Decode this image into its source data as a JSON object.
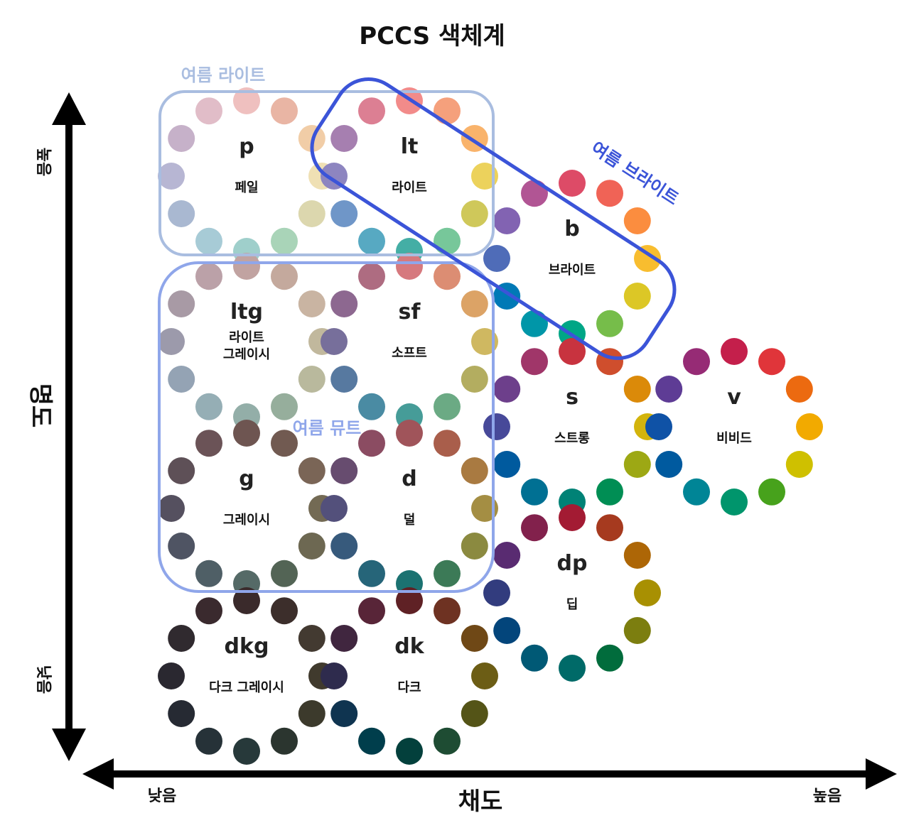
{
  "title": "PCCS  색체계",
  "axes": {
    "y_label": "명도",
    "y_high": "높음",
    "y_low": "낮음",
    "x_label": "채도",
    "x_low": "낮음",
    "x_high": "높음"
  },
  "groups": [
    {
      "label": "여름 라이트",
      "color": "#a9bde0"
    },
    {
      "label": "여름 브라이트",
      "color": "#3b54d8"
    },
    {
      "label": "여름 뮤트",
      "color": "#8fa6ea"
    }
  ],
  "tones": [
    {
      "code": "p",
      "name": [
        "페일"
      ],
      "colors": [
        "#efc0bf",
        "#e9b5a4",
        "#f1cda7",
        "#efe0b4",
        "#dcd7ae",
        "#a9d4b8",
        "#9fcfcb",
        "#a7cbd6",
        "#a9b8d1",
        "#b7b6d3",
        "#c6b1c9",
        "#e1bdc8"
      ]
    },
    {
      "code": "lt",
      "name": [
        "라이트"
      ],
      "colors": [
        "#f28b8a",
        "#f5a07c",
        "#f9b36b",
        "#ecd25c",
        "#cfc85a",
        "#77c79a",
        "#44aea5",
        "#57a9c2",
        "#6f96c8",
        "#8d85c0",
        "#a67fb0",
        "#dc7f93"
      ]
    },
    {
      "code": "b",
      "name": [
        "브라이트"
      ],
      "colors": [
        "#dd4b67",
        "#f06356",
        "#fb8d3f",
        "#f8bd2f",
        "#dcc726",
        "#76bd4a",
        "#00a686",
        "#0096a8",
        "#0079b6",
        "#4f6cb8",
        "#8263b2",
        "#b15594"
      ]
    },
    {
      "code": "ltg",
      "name": [
        "라이트",
        "그레이시"
      ],
      "colors": [
        "#c1a3a1",
        "#c4a99d",
        "#c9b4a2",
        "#c1b89d",
        "#b9b99d",
        "#96ae9c",
        "#93aea8",
        "#95aeb5",
        "#94a3b4",
        "#9c9aab",
        "#a89aa5",
        "#bba1a8"
      ]
    },
    {
      "code": "sf",
      "name": [
        "소프트"
      ],
      "colors": [
        "#d6797e",
        "#dc8d73",
        "#dca366",
        "#cfb861",
        "#b3ad60",
        "#6baa84",
        "#469c98",
        "#4a8ba3",
        "#5779a0",
        "#776f9b",
        "#8d6890",
        "#ae6c81"
      ]
    },
    {
      "code": "g",
      "name": [
        "그레이시"
      ],
      "colors": [
        "#6e5551",
        "#715a51",
        "#7a6556",
        "#736a54",
        "#6d6852",
        "#536455",
        "#556a67",
        "#4f5f66",
        "#4f5463",
        "#55505f",
        "#5e5057",
        "#6b5357"
      ]
    },
    {
      "code": "d",
      "name": [
        "덜"
      ],
      "colors": [
        "#a0545a",
        "#a95e4b",
        "#a97a41",
        "#a48e43",
        "#8b8a40",
        "#3c7a57",
        "#1b7271",
        "#266579",
        "#375a7c",
        "#53507b",
        "#674c6f",
        "#8b4c62"
      ]
    },
    {
      "code": "s",
      "name": [
        "스트롱"
      ],
      "colors": [
        "#c8333f",
        "#cf4e2d",
        "#db8a09",
        "#d3b40c",
        "#9da814",
        "#008e54",
        "#008276",
        "#007093",
        "#005a9e",
        "#474999",
        "#6d3f8b",
        "#a03669"
      ]
    },
    {
      "code": "v",
      "name": [
        "비비드"
      ],
      "colors": [
        "#c41f4b",
        "#e0353a",
        "#ec6a10",
        "#f2aa00",
        "#cfc000",
        "#47a21c",
        "#00956c",
        "#008596",
        "#005a9f",
        "#0f52a6",
        "#5e3c95",
        "#962b75"
      ]
    },
    {
      "code": "dp",
      "name": [
        "딥"
      ],
      "colors": [
        "#a31b33",
        "#a63a1f",
        "#ad6606",
        "#a89002",
        "#7c7e0f",
        "#016c3c",
        "#006a68",
        "#005975",
        "#03457b",
        "#323c7e",
        "#592b71",
        "#82214c"
      ]
    },
    {
      "code": "dkg",
      "name": [
        "다크 그레이시"
      ],
      "colors": [
        "#3a2a2b",
        "#3c2e2b",
        "#433a31",
        "#403a2d",
        "#3c3a2c",
        "#2b352f",
        "#27393a",
        "#263238",
        "#262a33",
        "#2a2830",
        "#302a2f",
        "#3a2a2e"
      ]
    },
    {
      "code": "dk",
      "name": [
        "다크"
      ],
      "colors": [
        "#5f2125",
        "#6e3222",
        "#6f4816",
        "#6c5d15",
        "#545417",
        "#1e4c33",
        "#03403c",
        "#003e4c",
        "#0f3450",
        "#2e2b4d",
        "#40263f",
        "#582538"
      ]
    }
  ]
}
